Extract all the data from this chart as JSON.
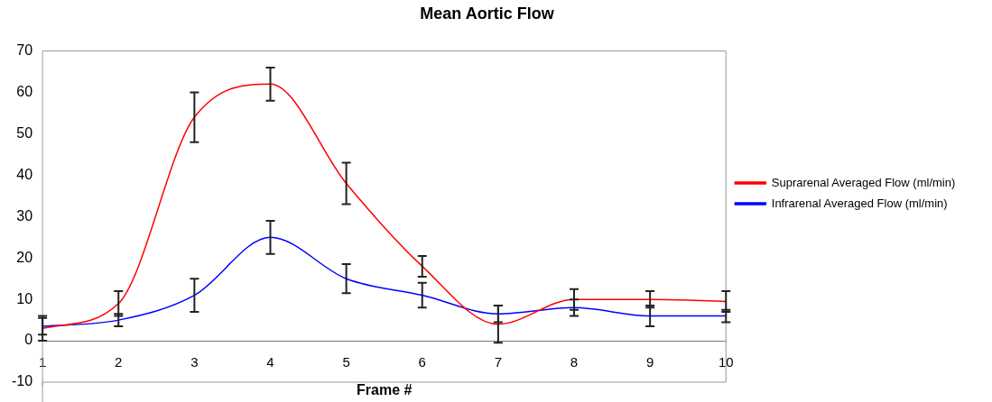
{
  "chart_data": {
    "type": "line",
    "title": "Mean Aortic Flow",
    "xlabel": "Frame #",
    "x": [
      1,
      2,
      3,
      4,
      5,
      6,
      7,
      8,
      9,
      10
    ],
    "xlim": [
      1,
      10
    ],
    "xticks": [
      1,
      2,
      3,
      4,
      5,
      6,
      7,
      8,
      9,
      10
    ],
    "ylim": [
      -10,
      70
    ],
    "yticks": [
      -10,
      0,
      10,
      20,
      30,
      40,
      50,
      60,
      70
    ],
    "grid": false,
    "legend": "right",
    "marker": "none",
    "line_style": "solid",
    "series": [
      {
        "name": "Suprarenal Averaged Flow (ml/min)",
        "color": "#ff0000",
        "values": [
          3,
          9,
          54,
          62,
          38,
          18,
          4,
          10,
          10,
          9.5
        ],
        "errors": [
          3,
          3,
          6,
          4,
          5,
          2.5,
          4.5,
          2.5,
          2,
          2.5
        ]
      },
      {
        "name": "Infrarenal Averaged Flow (ml/min)",
        "color": "#0000ff",
        "values": [
          3.5,
          5,
          11,
          25,
          15,
          11,
          6.5,
          8,
          6,
          6
        ],
        "errors": [
          2,
          1.5,
          4,
          4,
          3.5,
          3,
          2,
          2,
          2.5,
          1.5
        ]
      }
    ]
  }
}
